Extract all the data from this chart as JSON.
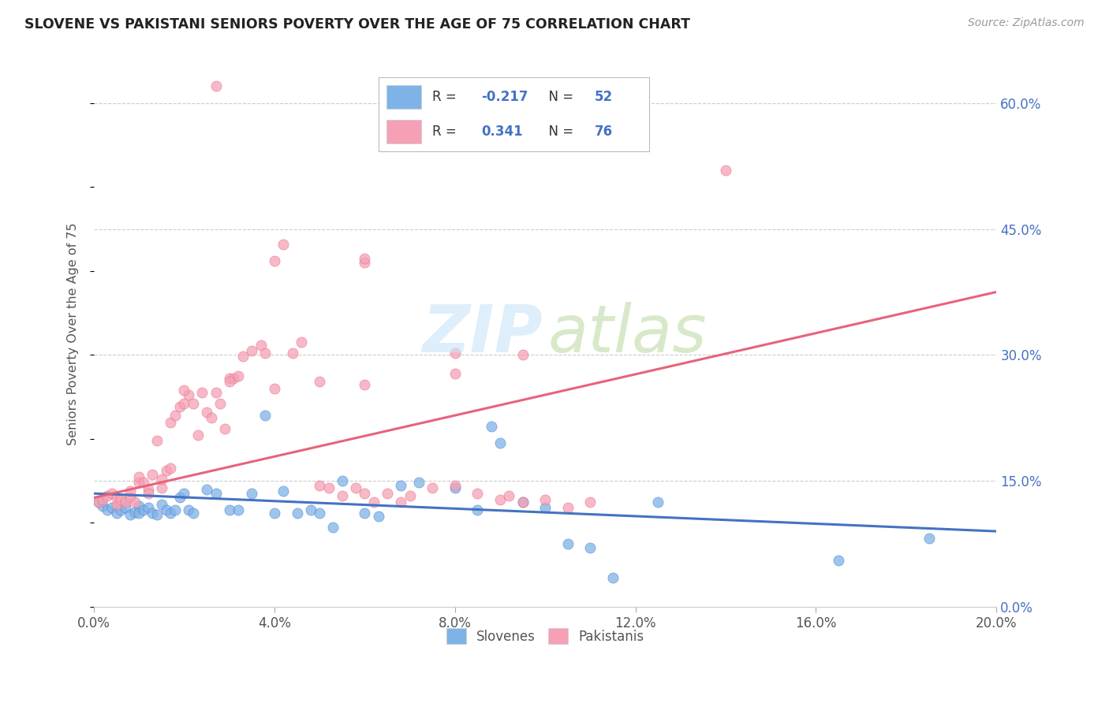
{
  "title": "SLOVENE VS PAKISTANI SENIORS POVERTY OVER THE AGE OF 75 CORRELATION CHART",
  "source": "Source: ZipAtlas.com",
  "ylabel": "Seniors Poverty Over the Age of 75",
  "xlim": [
    0.0,
    0.2
  ],
  "ylim": [
    0.0,
    0.65
  ],
  "xticks": [
    0.0,
    0.04,
    0.08,
    0.12,
    0.16,
    0.2
  ],
  "yticks_right": [
    0.0,
    0.15,
    0.3,
    0.45,
    0.6
  ],
  "r_slovene": -0.217,
  "n_slovene": 52,
  "r_pakistani": 0.341,
  "n_pakistani": 76,
  "slovene_color": "#7EB3E8",
  "pakistani_color": "#F5A0B5",
  "slovene_line_color": "#4472C4",
  "pakistani_line_color": "#E8637A",
  "background_color": "#FFFFFF",
  "slovene_x": [
    0.001,
    0.002,
    0.003,
    0.004,
    0.005,
    0.006,
    0.007,
    0.008,
    0.009,
    0.01,
    0.01,
    0.011,
    0.012,
    0.013,
    0.014,
    0.015,
    0.016,
    0.017,
    0.018,
    0.019,
    0.02,
    0.021,
    0.022,
    0.025,
    0.027,
    0.03,
    0.032,
    0.035,
    0.038,
    0.04,
    0.042,
    0.045,
    0.048,
    0.05,
    0.053,
    0.055,
    0.06,
    0.063,
    0.068,
    0.072,
    0.08,
    0.085,
    0.088,
    0.09,
    0.095,
    0.1,
    0.105,
    0.11,
    0.115,
    0.125,
    0.165,
    0.185
  ],
  "slovene_y": [
    0.125,
    0.12,
    0.115,
    0.118,
    0.112,
    0.115,
    0.118,
    0.11,
    0.113,
    0.12,
    0.112,
    0.115,
    0.118,
    0.112,
    0.11,
    0.122,
    0.115,
    0.112,
    0.115,
    0.13,
    0.135,
    0.115,
    0.112,
    0.14,
    0.135,
    0.115,
    0.115,
    0.135,
    0.228,
    0.112,
    0.138,
    0.112,
    0.115,
    0.112,
    0.095,
    0.15,
    0.112,
    0.108,
    0.145,
    0.148,
    0.142,
    0.115,
    0.215,
    0.195,
    0.125,
    0.118,
    0.075,
    0.07,
    0.035,
    0.125,
    0.055,
    0.082
  ],
  "pakistani_x": [
    0.001,
    0.002,
    0.003,
    0.004,
    0.005,
    0.005,
    0.006,
    0.007,
    0.008,
    0.008,
    0.009,
    0.01,
    0.01,
    0.011,
    0.012,
    0.012,
    0.013,
    0.014,
    0.015,
    0.015,
    0.016,
    0.017,
    0.017,
    0.018,
    0.019,
    0.02,
    0.021,
    0.022,
    0.023,
    0.024,
    0.025,
    0.026,
    0.027,
    0.028,
    0.029,
    0.03,
    0.031,
    0.032,
    0.033,
    0.035,
    0.037,
    0.038,
    0.04,
    0.042,
    0.044,
    0.046,
    0.05,
    0.052,
    0.055,
    0.058,
    0.06,
    0.062,
    0.065,
    0.068,
    0.07,
    0.075,
    0.08,
    0.085,
    0.09,
    0.092,
    0.095,
    0.1,
    0.105,
    0.11,
    0.06,
    0.027,
    0.14,
    0.06,
    0.095,
    0.08,
    0.08,
    0.06,
    0.05,
    0.04,
    0.03,
    0.02
  ],
  "pakistani_y": [
    0.125,
    0.128,
    0.132,
    0.135,
    0.122,
    0.13,
    0.128,
    0.125,
    0.13,
    0.138,
    0.125,
    0.148,
    0.155,
    0.148,
    0.14,
    0.135,
    0.158,
    0.198,
    0.142,
    0.152,
    0.162,
    0.22,
    0.165,
    0.228,
    0.238,
    0.242,
    0.252,
    0.242,
    0.205,
    0.255,
    0.232,
    0.225,
    0.255,
    0.242,
    0.212,
    0.272,
    0.272,
    0.275,
    0.298,
    0.305,
    0.312,
    0.302,
    0.412,
    0.432,
    0.302,
    0.315,
    0.145,
    0.142,
    0.132,
    0.142,
    0.135,
    0.125,
    0.135,
    0.125,
    0.132,
    0.142,
    0.145,
    0.135,
    0.128,
    0.132,
    0.125,
    0.128,
    0.118,
    0.125,
    0.41,
    0.62,
    0.52,
    0.415,
    0.3,
    0.302,
    0.278,
    0.265,
    0.268,
    0.26,
    0.268,
    0.258
  ],
  "slov_line": [
    0.135,
    0.09
  ],
  "pak_line": [
    0.13,
    0.375
  ]
}
